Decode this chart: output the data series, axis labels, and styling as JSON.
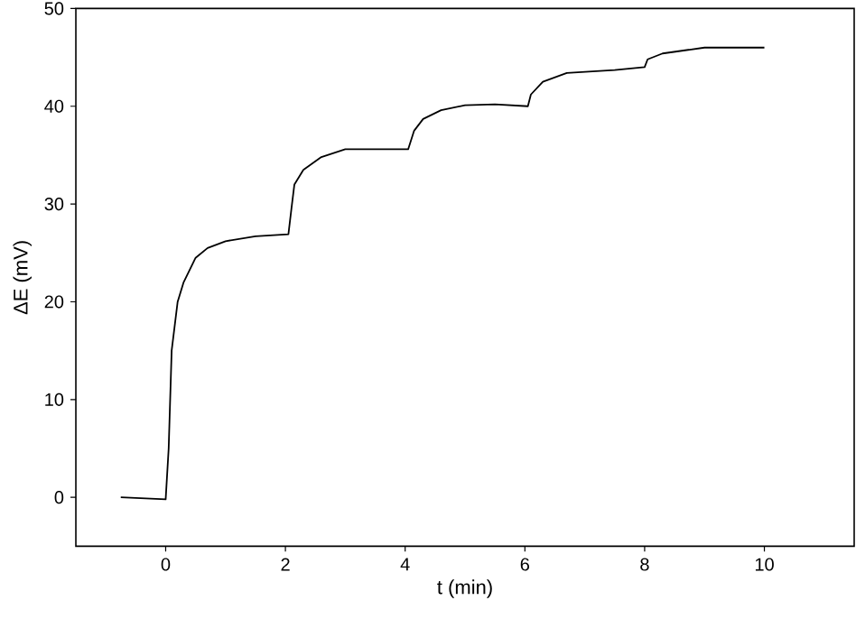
{
  "chart_data": {
    "type": "line",
    "xlabel": "t (min)",
    "ylabel": "ΔE (mV)",
    "xlim": [
      -1.5,
      11.5
    ],
    "xticks": [
      0,
      2,
      4,
      6,
      8,
      10
    ],
    "ylim": [
      -5,
      50
    ],
    "yticks": [
      0,
      10,
      20,
      30,
      40,
      50
    ],
    "series": [
      {
        "color": "#000000",
        "x": [
          -0.75,
          0,
          0.05,
          0.1,
          0.2,
          0.3,
          0.5,
          0.7,
          1,
          1.5,
          2.05,
          2.1,
          2.15,
          2.3,
          2.6,
          3,
          4.05,
          4.15,
          4.3,
          4.6,
          5,
          5.5,
          6.05,
          6.1,
          6.3,
          6.7,
          7.5,
          8,
          8.05,
          8.3,
          9,
          10
        ],
        "values": [
          0,
          -0.2,
          5,
          15,
          20,
          22,
          24.5,
          25.5,
          26.2,
          26.7,
          26.9,
          29.5,
          32,
          33.5,
          34.8,
          35.6,
          35.6,
          37.5,
          38.7,
          39.6,
          40.1,
          40.2,
          40,
          41.2,
          42.5,
          43.4,
          43.7,
          44,
          44.8,
          45.4,
          46,
          46
        ]
      }
    ]
  }
}
